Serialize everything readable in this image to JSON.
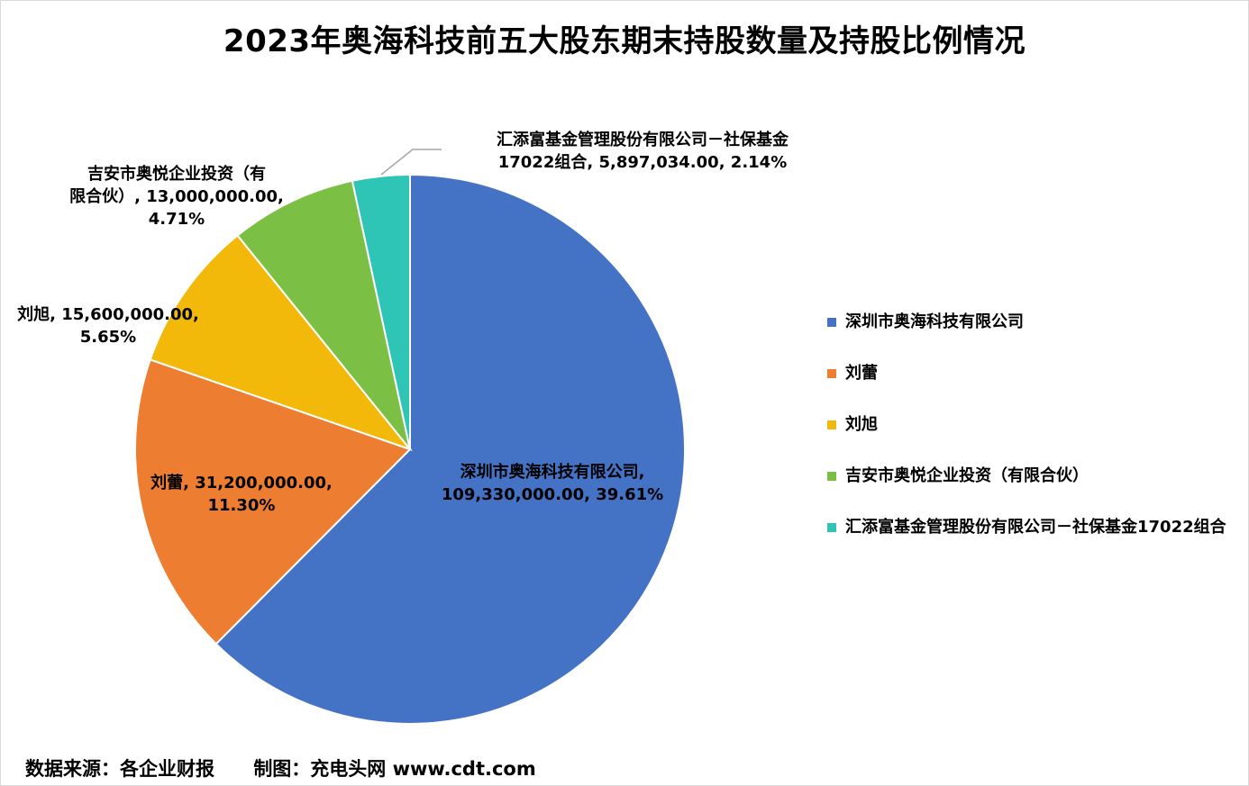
{
  "title": "2023年奥海科技前五大股东期末持股数量及持股比例情况",
  "footer": {
    "source": "数据来源：各企业财报",
    "credit": "制图：充电头网 www.cdt.com"
  },
  "colors": [
    "#4472C4",
    "#ED7D31",
    "#F2B90A",
    "#7BBF44",
    "#2EC4B6"
  ],
  "chart_data": {
    "type": "pie",
    "slices": [
      {
        "name": "深圳市奥海科技有限公司",
        "value": 109330000.0,
        "percent": 39.61,
        "label_line1": "深圳市奥海科技有限公司,",
        "label_line2": "109,330,000.00, 39.61%",
        "legend": "深圳市奥海科技有限公司"
      },
      {
        "name": "刘蕾",
        "value": 31200000.0,
        "percent": 11.3,
        "label_line1": "刘蕾, 31,200,000.00,",
        "label_line2": "11.30%",
        "legend": "刘蕾"
      },
      {
        "name": "刘旭",
        "value": 15600000.0,
        "percent": 5.65,
        "label_line1": "刘旭, 15,600,000.00,",
        "label_line2": "5.65%",
        "legend": "刘旭"
      },
      {
        "name": "吉安市奥悦企业投资（有限合伙）",
        "value": 13000000.0,
        "percent": 4.71,
        "label_line1": "吉安市奥悦企业投资（有",
        "label_line2": "限合伙）, 13,000,000.00,",
        "label_line3": "4.71%",
        "legend": "吉安市奥悦企业投资（有限合伙）"
      },
      {
        "name": "汇添富基金管理股份有限公司－社保基金17022组合",
        "value": 5897034.0,
        "percent": 2.14,
        "label_line1": "汇添富基金管理股份有限公司－社保基金",
        "label_line2": "17022组合, 5,897,034.00, 2.14%",
        "legend": "汇添富基金管理股份有限公司－社保基金17022组合"
      }
    ]
  }
}
